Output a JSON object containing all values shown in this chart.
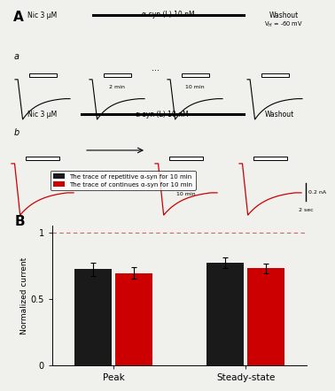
{
  "fig_label_A": "A",
  "fig_label_B": "B",
  "panel_a_label": "a",
  "panel_b_label": "b",
  "vh_text": "V$_H$ = -60 mV",
  "nic_text": "Nic 3 μM",
  "asyn_text": "α-syn (L) 10 nM",
  "washout_text": "Washout",
  "dots_text": "...",
  "min2_text": "2 min",
  "min10_text": "10 min",
  "min10b_text": "10 min",
  "scale_text1": "0.2 nA",
  "scale_text2": "2 sec",
  "legend1": "The trace of repetitive α-syn for 10 min",
  "legend2": "The trace of continues α-syn for 10 min",
  "ylabel_B": "Normalized current",
  "xlabel_B1": "Peak",
  "xlabel_B2": "Steady-state",
  "bar_black_peak": 0.725,
  "bar_red_peak": 0.695,
  "bar_black_ss": 0.775,
  "bar_red_ss": 0.73,
  "err_black_peak": 0.05,
  "err_red_peak": 0.045,
  "err_black_ss": 0.04,
  "err_red_ss": 0.035,
  "ylim_B": [
    0,
    1.05
  ],
  "dashed_line_y": 1.0,
  "bar_color_black": "#1a1a1a",
  "bar_color_red": "#cc0000",
  "dashed_color": "#cc6666",
  "bg_color": "#f0f0ec"
}
